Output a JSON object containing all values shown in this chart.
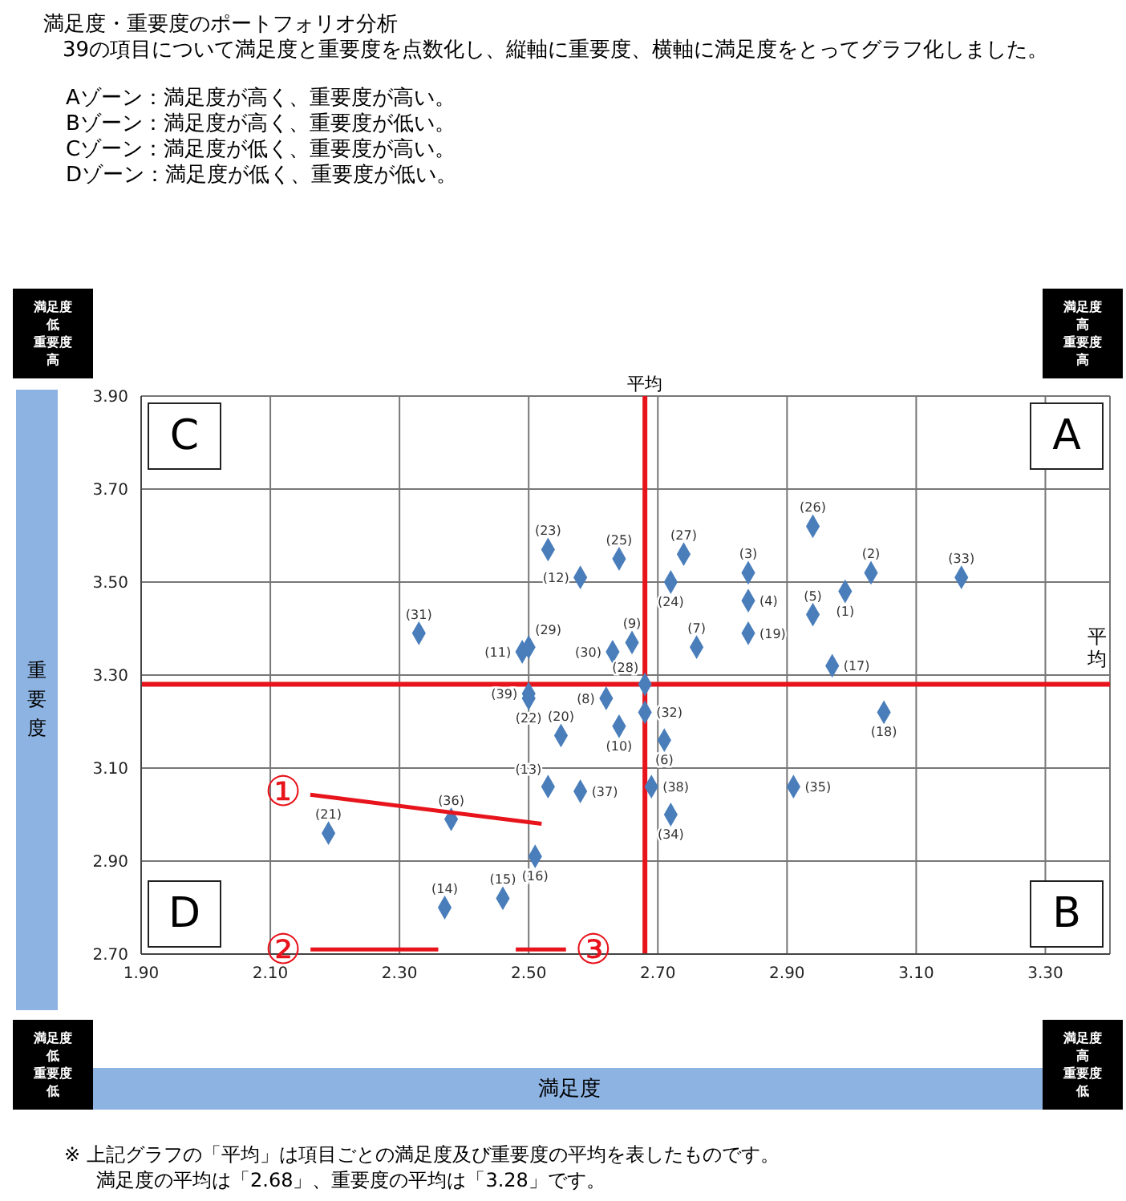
{
  "chart_data": {
    "type": "scatter",
    "title": "満足度・重要度のポートフォリオ分析",
    "subtitle": "39の項目について満足度と重要度を点数化し、縦軸に重要度、横軸に満足度をとってグラフ化しました。",
    "xlabel": "満足度",
    "ylabel": "重要度",
    "series": [
      {
        "name": "(1)",
        "color": "#4a7ebb",
        "x": [
          2.99
        ],
        "values": [
          3.48
        ]
      },
      {
        "name": "(2)",
        "color": "#4a7ebb",
        "x": [
          3.03
        ],
        "values": [
          3.52
        ]
      },
      {
        "name": "(3)",
        "color": "#4a7ebb",
        "x": [
          2.84
        ],
        "values": [
          3.52
        ]
      },
      {
        "name": "(4)",
        "color": "#4a7ebb",
        "x": [
          2.84
        ],
        "values": [
          3.46
        ]
      },
      {
        "name": "(5)",
        "color": "#4a7ebb",
        "x": [
          2.94
        ],
        "values": [
          3.43
        ]
      },
      {
        "name": "(6)",
        "color": "#4a7ebb",
        "x": [
          2.71
        ],
        "values": [
          3.16
        ]
      },
      {
        "name": "(7)",
        "color": "#4a7ebb",
        "x": [
          2.76
        ],
        "values": [
          3.36
        ]
      },
      {
        "name": "(8)",
        "color": "#4a7ebb",
        "x": [
          2.62
        ],
        "values": [
          3.25
        ]
      },
      {
        "name": "(9)",
        "color": "#4a7ebb",
        "x": [
          2.66
        ],
        "values": [
          3.37
        ]
      },
      {
        "name": "(10)",
        "color": "#4a7ebb",
        "x": [
          2.64
        ],
        "values": [
          3.19
        ]
      },
      {
        "name": "(11)",
        "color": "#4a7ebb",
        "x": [
          2.49
        ],
        "values": [
          3.35
        ]
      },
      {
        "name": "(12)",
        "color": "#4a7ebb",
        "x": [
          2.58
        ],
        "values": [
          3.51
        ]
      },
      {
        "name": "(13)",
        "color": "#4a7ebb",
        "x": [
          2.53
        ],
        "values": [
          3.06
        ]
      },
      {
        "name": "(14)",
        "color": "#4a7ebb",
        "x": [
          2.37
        ],
        "values": [
          2.8
        ]
      },
      {
        "name": "(15)",
        "color": "#4a7ebb",
        "x": [
          2.46
        ],
        "values": [
          2.82
        ]
      },
      {
        "name": "(16)",
        "color": "#4a7ebb",
        "x": [
          2.51
        ],
        "values": [
          2.91
        ]
      },
      {
        "name": "(17)",
        "color": "#4a7ebb",
        "x": [
          2.97
        ],
        "values": [
          3.32
        ]
      },
      {
        "name": "(18)",
        "color": "#4a7ebb",
        "x": [
          3.05
        ],
        "values": [
          3.22
        ]
      },
      {
        "name": "(19)",
        "color": "#4a7ebb",
        "x": [
          2.84
        ],
        "values": [
          3.39
        ]
      },
      {
        "name": "(20)",
        "color": "#4a7ebb",
        "x": [
          2.55
        ],
        "values": [
          3.17
        ]
      },
      {
        "name": "(21)",
        "color": "#4a7ebb",
        "x": [
          2.19
        ],
        "values": [
          2.96
        ]
      },
      {
        "name": "(22)",
        "color": "#4a7ebb",
        "x": [
          2.5
        ],
        "values": [
          3.25
        ]
      },
      {
        "name": "(23)",
        "color": "#4a7ebb",
        "x": [
          2.53
        ],
        "values": [
          3.57
        ]
      },
      {
        "name": "(24)",
        "color": "#4a7ebb",
        "x": [
          2.72
        ],
        "values": [
          3.5
        ]
      },
      {
        "name": "(25)",
        "color": "#4a7ebb",
        "x": [
          2.64
        ],
        "values": [
          3.55
        ]
      },
      {
        "name": "(26)",
        "color": "#4a7ebb",
        "x": [
          2.94
        ],
        "values": [
          3.62
        ]
      },
      {
        "name": "(27)",
        "color": "#4a7ebb",
        "x": [
          2.74
        ],
        "values": [
          3.56
        ]
      },
      {
        "name": "(28)",
        "color": "#4a7ebb",
        "x": [
          2.68
        ],
        "values": [
          3.28
        ]
      },
      {
        "name": "(29)",
        "color": "#4a7ebb",
        "x": [
          2.5
        ],
        "values": [
          3.36
        ]
      },
      {
        "name": "(30)",
        "color": "#4a7ebb",
        "x": [
          2.63
        ],
        "values": [
          3.35
        ]
      },
      {
        "name": "(31)",
        "color": "#4a7ebb",
        "x": [
          2.33
        ],
        "values": [
          3.39
        ]
      },
      {
        "name": "(32)",
        "color": "#4a7ebb",
        "x": [
          2.68
        ],
        "values": [
          3.22
        ]
      },
      {
        "name": "(33)",
        "color": "#4a7ebb",
        "x": [
          3.17
        ],
        "values": [
          3.51
        ]
      },
      {
        "name": "(34)",
        "color": "#4a7ebb",
        "x": [
          2.72
        ],
        "values": [
          3.0
        ]
      },
      {
        "name": "(35)",
        "color": "#4a7ebb",
        "x": [
          2.91
        ],
        "values": [
          3.06
        ]
      },
      {
        "name": "(36)",
        "color": "#4a7ebb",
        "x": [
          2.38
        ],
        "values": [
          2.99
        ]
      },
      {
        "name": "(37)",
        "color": "#4a7ebb",
        "x": [
          2.58
        ],
        "values": [
          3.05
        ]
      },
      {
        "name": "(38)",
        "color": "#4a7ebb",
        "x": [
          2.69
        ],
        "values": [
          3.06
        ]
      },
      {
        "name": "(39)",
        "color": "#4a7ebb",
        "x": [
          2.5
        ],
        "values": [
          3.26
        ]
      }
    ],
    "marker": "diamond",
    "grid": true,
    "xlim": [
      1.9,
      3.4
    ],
    "xticks": [
      {
        "value": 1.9,
        "label": "1.90"
      },
      {
        "value": 2.1,
        "label": "2.10"
      },
      {
        "value": 2.3,
        "label": "2.30"
      },
      {
        "value": 2.5,
        "label": "2.50"
      },
      {
        "value": 2.7,
        "label": "2.70"
      },
      {
        "value": 2.9,
        "label": "2.90"
      },
      {
        "value": 3.1,
        "label": "3.10"
      },
      {
        "value": 3.3,
        "label": "3.30"
      }
    ],
    "ylim": [
      2.7,
      3.9
    ],
    "yticks": [
      {
        "value": 2.7,
        "label": "2.70"
      },
      {
        "value": 2.9,
        "label": "2.90"
      },
      {
        "value": 3.1,
        "label": "3.10"
      },
      {
        "value": 3.3,
        "label": "3.30"
      },
      {
        "value": 3.5,
        "label": "3.50"
      },
      {
        "value": 3.7,
        "label": "3.70"
      },
      {
        "value": 3.9,
        "label": "3.90"
      }
    ],
    "ref_lines": [
      {
        "axis": "x",
        "value": 2.68,
        "label": "平均",
        "color": "#e8141c"
      },
      {
        "axis": "y",
        "value": 3.28,
        "label": "平均",
        "color": "#e8141c"
      }
    ],
    "annotations": [
      "Aゾーン：満足度が高く、重要度が高い。",
      "Bゾーン：満足度が高く、重要度が低い。",
      "Cゾーン：満足度が低く、重要度が高い。",
      "Dゾーン：満足度が低く、重要度が低い。",
      "C",
      "A",
      "D",
      "B",
      "満足度低重要度高",
      "満足度高重要度高",
      "満足度低重要度低",
      "満足度高重要度低",
      "※ 上記グラフの「平均」は項目ごとの満足度及び重要度の平均を表したものです。",
      "満足度の平均は「2.68」、重要度の平均は「3.28」です。",
      "①",
      "②",
      "③"
    ]
  }
}
